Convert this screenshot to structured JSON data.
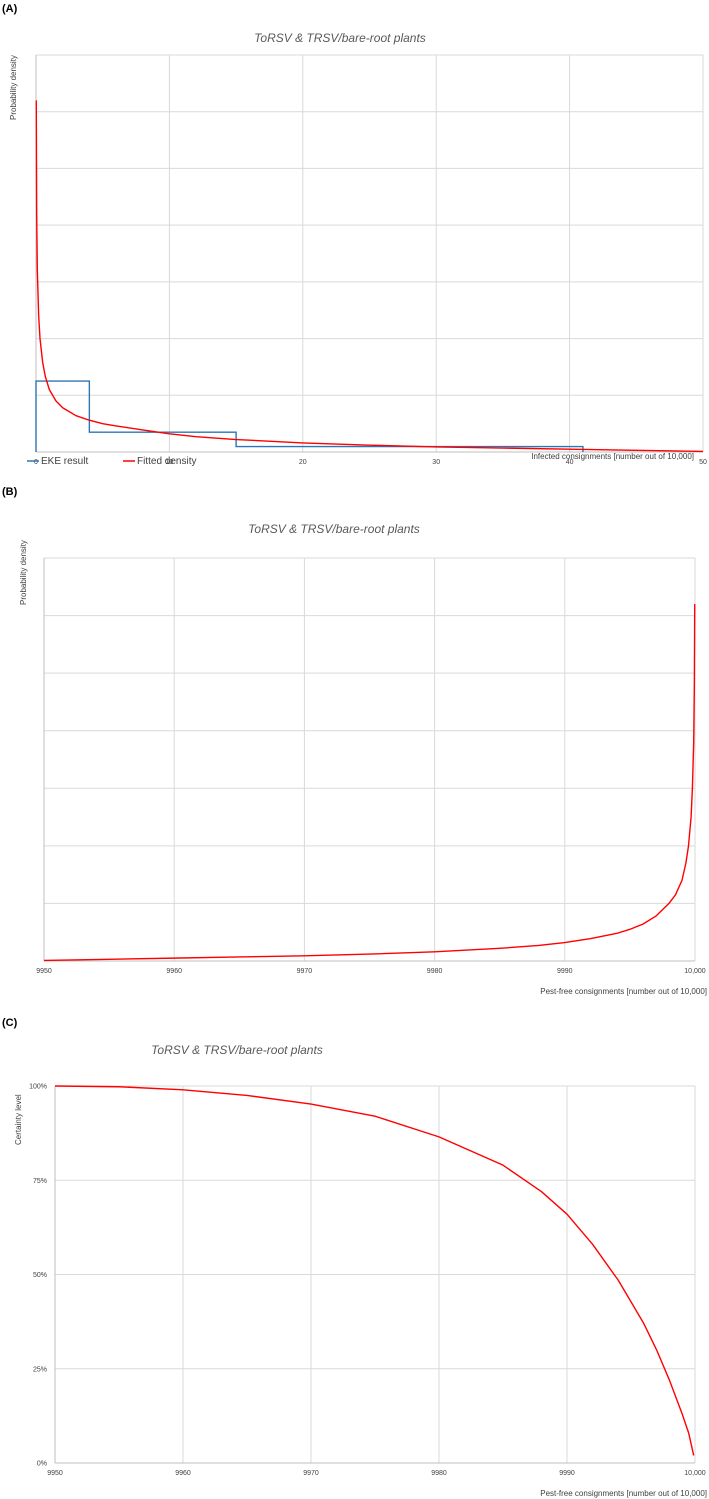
{
  "chart_data": [
    {
      "panel": "(A)",
      "type": "line",
      "title": "ToRSV & TRSV/bare-root plants",
      "xlabel": "Infected consignments [number out of 10,000]",
      "ylabel": "Probability density",
      "xlim": [
        0,
        50
      ],
      "xticks": [
        "0",
        "10",
        "20",
        "30",
        "40",
        "50"
      ],
      "y_gridlines": 7,
      "grid": true,
      "legend_position": "bottom-left",
      "series": [
        {
          "name": "EKE result",
          "color": "#2e75b6",
          "style": "step",
          "steps": [
            {
              "x0": 0,
              "x1": 4,
              "y": 0.125
            },
            {
              "x0": 4,
              "x1": 15,
              "y": 0.035
            },
            {
              "x0": 15,
              "x1": 41,
              "y": 0.0095
            }
          ]
        },
        {
          "name": "Fitted density",
          "color": "#ff0000",
          "x": [
            0.02,
            0.05,
            0.1,
            0.2,
            0.3,
            0.5,
            0.7,
            1,
            1.5,
            2,
            3,
            4,
            5,
            6,
            8,
            10,
            12,
            15,
            20,
            25,
            30,
            35,
            40,
            45,
            50
          ],
          "y": [
            0.62,
            0.42,
            0.32,
            0.24,
            0.2,
            0.158,
            0.133,
            0.11,
            0.09,
            0.078,
            0.064,
            0.056,
            0.05,
            0.046,
            0.039,
            0.032,
            0.027,
            0.022,
            0.016,
            0.012,
            0.009,
            0.007,
            0.005,
            0.003,
            0.001
          ]
        }
      ]
    },
    {
      "panel": "(B)",
      "type": "line",
      "title": "ToRSV & TRSV/bare-root plants",
      "xlabel": "Pest-free consignments [number out of 10,000]",
      "ylabel": "Probability density",
      "xlim": [
        9950,
        10000
      ],
      "xticks": [
        "9950",
        "9960",
        "9970",
        "9980",
        "9990",
        "10,000"
      ],
      "y_gridlines": 7,
      "grid": true,
      "series": [
        {
          "name": "Fitted density",
          "color": "#ff0000",
          "x": [
            9950,
            9955,
            9960,
            9965,
            9970,
            9975,
            9980,
            9985,
            9988,
            9990,
            9992,
            9994,
            9995,
            9996,
            9997,
            9998,
            9998.5,
            9999,
            9999.3,
            9999.5,
            9999.7,
            9999.8,
            9999.9,
            9999.95,
            9999.98
          ],
          "y": [
            0.001,
            0.003,
            0.005,
            0.007,
            0.009,
            0.012,
            0.016,
            0.022,
            0.027,
            0.032,
            0.039,
            0.048,
            0.055,
            0.064,
            0.078,
            0.1,
            0.115,
            0.14,
            0.17,
            0.2,
            0.25,
            0.3,
            0.38,
            0.48,
            0.62
          ]
        }
      ]
    },
    {
      "panel": "(C)",
      "type": "line",
      "title": "ToRSV & TRSV/bare-root plants",
      "xlabel": "Pest-free consignments [number out of 10,000]",
      "ylabel": "Certainty level",
      "xlim": [
        9950,
        10000
      ],
      "ylim": [
        0,
        1
      ],
      "xticks": [
        "9950",
        "9960",
        "9970",
        "9980",
        "9990",
        "10,000"
      ],
      "yticks": [
        "0%",
        "25%",
        "50%",
        "75%",
        "100%"
      ],
      "grid": true,
      "series": [
        {
          "name": "Certainty level",
          "color": "#ff0000",
          "x": [
            9950,
            9955,
            9960,
            9965,
            9970,
            9975,
            9980,
            9985,
            9988,
            9990,
            9992,
            9994,
            9996,
            9997,
            9998,
            9999,
            9999.5,
            9999.9
          ],
          "y": [
            1.0,
            0.998,
            0.99,
            0.975,
            0.952,
            0.92,
            0.865,
            0.79,
            0.72,
            0.66,
            0.58,
            0.485,
            0.37,
            0.3,
            0.22,
            0.13,
            0.08,
            0.02
          ]
        }
      ]
    }
  ]
}
